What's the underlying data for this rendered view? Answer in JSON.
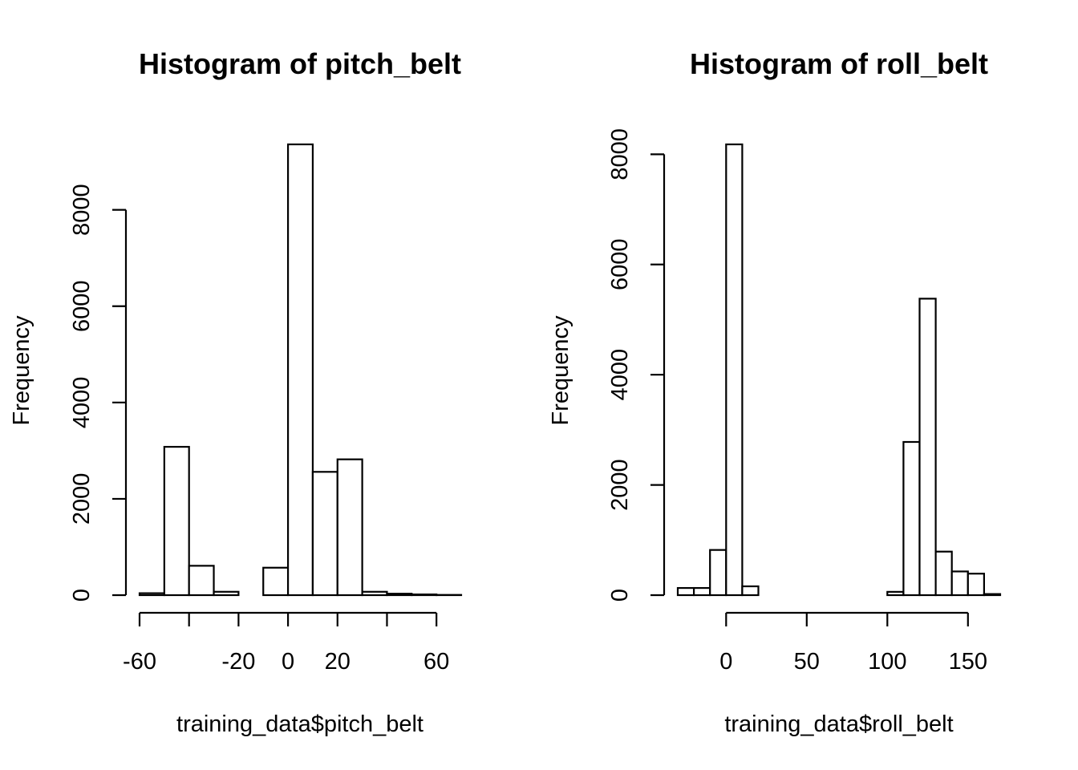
{
  "chart_data": [
    {
      "type": "bar",
      "title": "Histogram of pitch_belt",
      "xlabel": "training_data$pitch_belt",
      "ylabel": "Frequency",
      "x_ticks": [
        -60,
        -40,
        -20,
        0,
        20,
        40,
        60
      ],
      "x_tick_labels": [
        "-60",
        "",
        "-20",
        "0",
        "20",
        "",
        "60"
      ],
      "y_ticks": [
        0,
        2000,
        4000,
        6000,
        8000
      ],
      "y_tick_labels": [
        "0",
        "2000",
        "4000",
        "6000",
        "8000"
      ],
      "bin_edges": [
        -60,
        -50,
        -40,
        -30,
        -20,
        -10,
        0,
        10,
        20,
        30,
        40,
        50,
        60,
        70
      ],
      "values": [
        40,
        3080,
        610,
        70,
        0,
        570,
        9360,
        2560,
        2820,
        70,
        30,
        15,
        5
      ],
      "xlim": [
        -60,
        70
      ],
      "ylim": [
        0,
        9360
      ],
      "grid": false
    },
    {
      "type": "bar",
      "title": "Histogram of roll_belt",
      "xlabel": "training_data$roll_belt",
      "ylabel": "Frequency",
      "x_ticks": [
        0,
        50,
        100,
        150
      ],
      "x_tick_labels": [
        "0",
        "50",
        "100",
        "150"
      ],
      "y_ticks": [
        0,
        2000,
        4000,
        6000,
        8000
      ],
      "y_tick_labels": [
        "0",
        "2000",
        "4000",
        "6000",
        "8000"
      ],
      "bin_edges": [
        -30,
        -20,
        -10,
        0,
        10,
        20,
        30,
        40,
        50,
        60,
        70,
        80,
        90,
        100,
        110,
        120,
        130,
        140,
        150,
        160,
        170
      ],
      "values": [
        130,
        130,
        820,
        8180,
        160,
        0,
        0,
        0,
        0,
        0,
        0,
        0,
        0,
        60,
        2780,
        5380,
        790,
        430,
        390,
        20
      ],
      "xlim": [
        -30,
        170
      ],
      "ylim": [
        0,
        8180
      ],
      "grid": false
    }
  ]
}
